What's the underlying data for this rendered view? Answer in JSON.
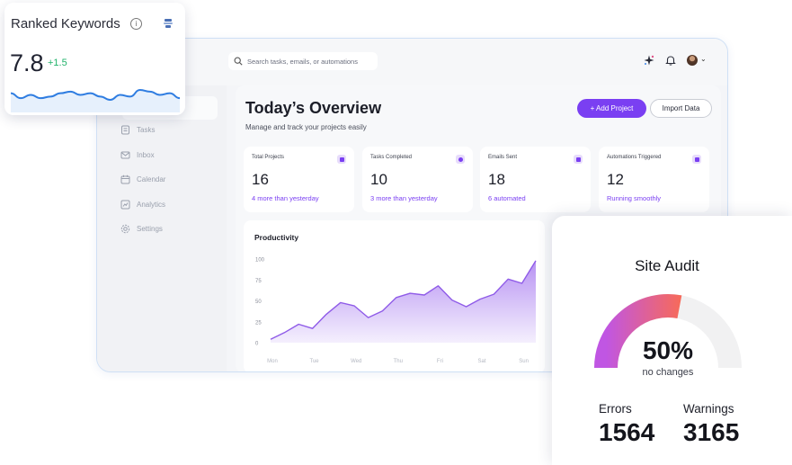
{
  "search": {
    "placeholder": "Search tasks, emails, or automations"
  },
  "sidebar": {
    "items": [
      {
        "label": "Tasks",
        "icon": "tasks-icon"
      },
      {
        "label": "Inbox",
        "icon": "inbox-icon"
      },
      {
        "label": "Calendar",
        "icon": "calendar-icon"
      },
      {
        "label": "Analytics",
        "icon": "analytics-icon"
      },
      {
        "label": "Settings",
        "icon": "settings-icon"
      }
    ]
  },
  "overview": {
    "title": "Today’s Overview",
    "subtitle": "Manage and track your projects easily",
    "add_button": "+ Add Project",
    "import_button": "Import Data"
  },
  "stats": [
    {
      "label": "Total Projects",
      "value": "16",
      "note": "4 more than yesterday"
    },
    {
      "label": "Tasks Completed",
      "value": "10",
      "note": "3 more than yesterday"
    },
    {
      "label": "Emails Sent",
      "value": "18",
      "note": "6 automated"
    },
    {
      "label": "Automations Triggered",
      "value": "12",
      "note": "Running smoothly"
    }
  ],
  "chart_data": {
    "type": "area",
    "title": "Productivity",
    "categories": [
      "Mon",
      "Tue",
      "Wed",
      "Thu",
      "Fri",
      "Sat",
      "Sun"
    ],
    "ylim": [
      0,
      100
    ],
    "yticks": [
      0,
      25,
      50,
      75,
      100
    ],
    "series": [
      {
        "x": [
          0,
          0.33,
          0.67,
          1,
          1.33,
          1.67,
          2,
          2.33,
          2.67,
          3,
          3.33,
          3.67,
          4,
          4.33,
          4.67,
          5,
          5.33,
          5.67,
          6,
          6.33
        ],
        "values": [
          4,
          12,
          22,
          17,
          34,
          48,
          44,
          30,
          38,
          54,
          59,
          57,
          68,
          51,
          43,
          52,
          58,
          76,
          71,
          98
        ]
      }
    ],
    "colors": {
      "line": "#8f5be8",
      "fill_top": "#b38cf2",
      "fill_bottom": "#f3edfd"
    }
  },
  "ranked_keywords": {
    "title": "Ranked Keywords",
    "value": "7.8",
    "delta": "+1.5",
    "info_icon": "info-icon",
    "sparkline": [
      6,
      3,
      5,
      3,
      4,
      6,
      7,
      5,
      6,
      4,
      2,
      5,
      4,
      8,
      7,
      5,
      6,
      3
    ],
    "colors": {
      "line": "#2f7de1",
      "fill": "#e6f0fc",
      "delta": "#22b36b"
    }
  },
  "site_audit": {
    "title": "Site Audit",
    "percent": "50%",
    "status": "no changes",
    "gauge_fraction": 0.5,
    "errors_label": "Errors",
    "errors_value": "1564",
    "warnings_label": "Warnings",
    "warnings_value": "3165",
    "colors": {
      "gauge_start": "#c056e3",
      "gauge_end": "#f66a5c",
      "track": "#f1f1f2"
    }
  },
  "colors": {
    "accent": "#7a3ff2"
  }
}
